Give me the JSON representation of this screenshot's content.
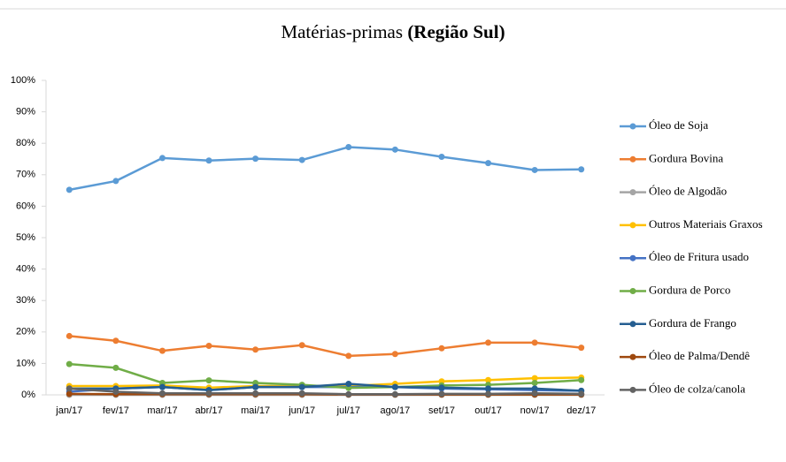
{
  "chart_data": {
    "type": "line",
    "title": [
      "Matérias-primas",
      "(Região Sul)"
    ],
    "categories": [
      "jan/17",
      "fev/17",
      "mar/17",
      "abr/17",
      "mai/17",
      "jun/17",
      "jul/17",
      "ago/17",
      "set/17",
      "out/17",
      "nov/17",
      "dez/17"
    ],
    "series": [
      {
        "name": "Óleo de Soja",
        "color": "#5b9bd5",
        "values": [
          65.2,
          68.0,
          75.3,
          74.5,
          75.1,
          74.7,
          78.8,
          78.0,
          75.7,
          73.7,
          71.5,
          71.7
        ]
      },
      {
        "name": "Gordura Bovina",
        "color": "#ed7d31",
        "values": [
          18.7,
          17.2,
          14.0,
          15.6,
          14.4,
          15.8,
          12.4,
          13.0,
          14.8,
          16.6,
          16.6,
          15.0
        ]
      },
      {
        "name": "Óleo de Algodão",
        "color": "#a5a5a5",
        "values": [
          0,
          0,
          0,
          0,
          0,
          0,
          0,
          0,
          0,
          0,
          0,
          0
        ]
      },
      {
        "name": "Outros Materiais Graxos",
        "color": "#ffc000",
        "values": [
          2.8,
          2.8,
          3.0,
          2.3,
          2.8,
          2.8,
          2.8,
          3.5,
          4.3,
          4.7,
          5.3,
          5.5
        ]
      },
      {
        "name": "Óleo de Fritura usado",
        "color": "#4472c4",
        "values": [
          1.0,
          2.0,
          2.5,
          1.5,
          2.5,
          2.5,
          2.5,
          2.5,
          2.0,
          1.8,
          1.5,
          1.3
        ]
      },
      {
        "name": "Gordura de Porco",
        "color": "#70ad47",
        "values": [
          9.8,
          8.6,
          3.8,
          4.6,
          3.8,
          3.2,
          2.2,
          2.5,
          3.0,
          3.2,
          3.8,
          4.7
        ]
      },
      {
        "name": "Gordura de Frango",
        "color": "#255e91",
        "values": [
          2.0,
          2.0,
          2.5,
          1.5,
          2.5,
          2.5,
          3.5,
          2.5,
          2.3,
          2.0,
          2.0,
          1.3
        ]
      },
      {
        "name": "Óleo de Palma/Dendê",
        "color": "#9e480e",
        "values": [
          0.3,
          0.2,
          0.2,
          0.2,
          0.2,
          0.2,
          0.1,
          0.1,
          0.1,
          0.1,
          0.1,
          0.1
        ]
      },
      {
        "name": "Óleo de colza/canola",
        "color": "#636363",
        "values": [
          2.0,
          1.0,
          0.5,
          0.5,
          0.5,
          0.5,
          0.2,
          0.2,
          0.3,
          0.3,
          0.5,
          0.3
        ]
      }
    ],
    "ylim": [
      0,
      100
    ],
    "yticks": [
      {
        "value": 0,
        "label": "0%"
      },
      {
        "value": 10,
        "label": "10%"
      },
      {
        "value": 20,
        "label": "20%"
      },
      {
        "value": 30,
        "label": "30%"
      },
      {
        "value": 40,
        "label": "40%"
      },
      {
        "value": 50,
        "label": "50%"
      },
      {
        "value": 60,
        "label": "60%"
      },
      {
        "value": 70,
        "label": "70%"
      },
      {
        "value": 80,
        "label": "80%"
      },
      {
        "value": 90,
        "label": "90%"
      },
      {
        "value": 100,
        "label": "100%"
      }
    ],
    "grid": false,
    "legend": "right"
  }
}
